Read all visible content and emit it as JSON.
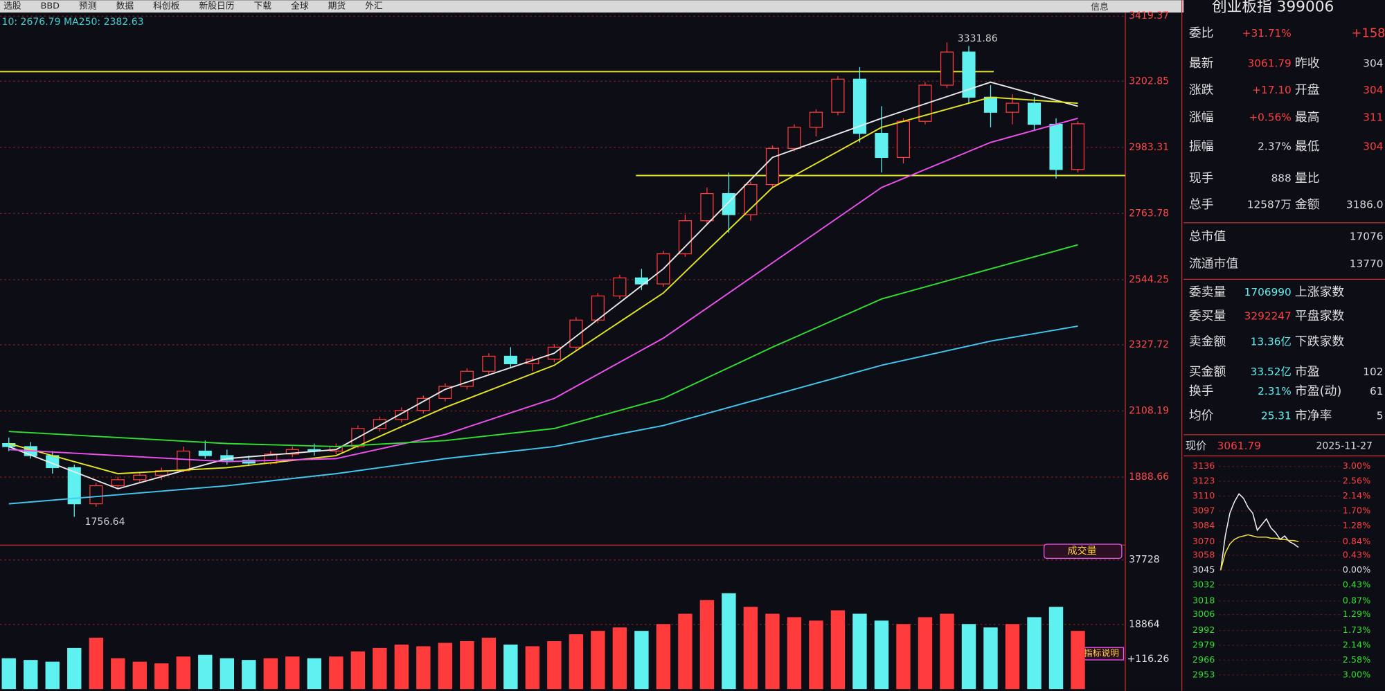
{
  "toolbar": [
    "选股",
    "BBD",
    "预测",
    "数据",
    "科创板",
    "新股日历",
    "下载",
    "全球",
    "期货",
    "外汇"
  ],
  "ma_header": "10: 2676.79 MA250: 2382.63",
  "chart_data": {
    "type": "candlestick",
    "ylim": [
      1683.4,
      3419.37
    ],
    "yticks": [
      3419.37,
      3202.85,
      2983.31,
      2763.78,
      2544.25,
      2327.72,
      2108.19,
      1888.66
    ],
    "grid": true,
    "up_color": "#ff3b3b",
    "down_color": "#5ff0f0",
    "open": [
      2000,
      1990,
      1960,
      1920,
      1800,
      1860,
      1880,
      1895,
      1910,
      1975,
      1960,
      1945,
      1935,
      1965,
      1980,
      1975,
      1990,
      2050,
      2080,
      2110,
      2150,
      2190,
      2240,
      2290,
      2265,
      2280,
      2320,
      2410,
      2490,
      2550,
      2530,
      2630,
      2740,
      2830,
      2760,
      2860,
      2980,
      3050,
      3100,
      3210,
      3030,
      2950,
      3070,
      3190,
      3300,
      3150,
      3100,
      3130,
      3060,
      2910
    ],
    "high": [
      2020,
      2005,
      1975,
      1930,
      1870,
      1890,
      1905,
      1920,
      1990,
      2010,
      1980,
      1960,
      1975,
      1990,
      2000,
      2000,
      2060,
      2090,
      2120,
      2160,
      2200,
      2250,
      2300,
      2320,
      2290,
      2330,
      2420,
      2500,
      2560,
      2580,
      2640,
      2760,
      2850,
      2900,
      2870,
      2990,
      3060,
      3110,
      3220,
      3250,
      3120,
      3080,
      3200,
      3331.86,
      3320,
      3190,
      3160,
      3150,
      3080,
      3070
    ],
    "low": [
      1975,
      1950,
      1900,
      1756.64,
      1790,
      1850,
      1870,
      1880,
      1905,
      1950,
      1930,
      1925,
      1930,
      1955,
      1960,
      1965,
      1985,
      2040,
      2070,
      2100,
      2140,
      2180,
      2230,
      2250,
      2240,
      2270,
      2310,
      2400,
      2480,
      2510,
      2520,
      2620,
      2730,
      2700,
      2740,
      2850,
      2970,
      3020,
      3090,
      3000,
      2900,
      2930,
      3060,
      3180,
      3130,
      3050,
      3060,
      3040,
      2880,
      2900
    ],
    "close": [
      1990,
      1960,
      1920,
      1800,
      1860,
      1880,
      1895,
      1910,
      1975,
      1960,
      1945,
      1935,
      1965,
      1980,
      1975,
      1990,
      2050,
      2080,
      2110,
      2150,
      2190,
      2240,
      2290,
      2265,
      2280,
      2320,
      2410,
      2490,
      2550,
      2530,
      2630,
      2740,
      2830,
      2760,
      2860,
      2980,
      3050,
      3100,
      3210,
      3030,
      2950,
      3070,
      3190,
      3300,
      3150,
      3100,
      3130,
      3060,
      2910,
      3061.79
    ],
    "ma": [
      {
        "color": "#e8e8e8",
        "x": [
          0,
          5,
          10,
          15,
          20,
          25,
          30,
          35,
          40,
          45,
          49
        ],
        "values": [
          1990,
          1850,
          1950,
          1980,
          2180,
          2300,
          2580,
          2950,
          3080,
          3200,
          3120
        ]
      },
      {
        "color": "#e6e61e",
        "x": [
          0,
          5,
          10,
          15,
          20,
          25,
          30,
          35,
          40,
          45,
          49
        ],
        "values": [
          2000,
          1900,
          1920,
          1960,
          2120,
          2260,
          2500,
          2850,
          3050,
          3150,
          3130
        ]
      },
      {
        "color": "#f050f0",
        "x": [
          0,
          5,
          10,
          15,
          20,
          25,
          30,
          35,
          40,
          45,
          49
        ],
        "values": [
          1980,
          1960,
          1940,
          1950,
          2030,
          2150,
          2350,
          2600,
          2850,
          3000,
          3080
        ]
      },
      {
        "color": "#30e030",
        "x": [
          0,
          5,
          10,
          15,
          20,
          25,
          30,
          35,
          40,
          45,
          49
        ],
        "values": [
          2040,
          2020,
          2000,
          1990,
          2010,
          2050,
          2150,
          2320,
          2480,
          2580,
          2660
        ]
      },
      {
        "color": "#40c8f0",
        "x": [
          0,
          5,
          10,
          15,
          20,
          25,
          30,
          35,
          40,
          45,
          49
        ],
        "values": [
          1800,
          1830,
          1860,
          1900,
          1950,
          1990,
          2060,
          2160,
          2260,
          2340,
          2390
        ]
      }
    ],
    "hlines": {
      "color": "#e6e61e",
      "values": [
        3235,
        2890
      ]
    },
    "volume": {
      "ylim": [
        0,
        40000
      ],
      "yticks": [
        37728,
        18864
      ],
      "label": "成交量",
      "note": "指标说明",
      "extra": "+116.26",
      "values": [
        9000,
        8500,
        8000,
        12000,
        15000,
        9000,
        8000,
        7500,
        9500,
        10000,
        9000,
        8500,
        9000,
        9500,
        9000,
        9500,
        11000,
        12000,
        13000,
        12500,
        13500,
        14000,
        15000,
        13000,
        12500,
        14000,
        16000,
        17000,
        18000,
        17000,
        19000,
        22000,
        26000,
        28000,
        24000,
        22000,
        21000,
        20000,
        23000,
        22000,
        20000,
        19000,
        21000,
        22000,
        19000,
        18000,
        19000,
        21000,
        24000,
        17000
      ]
    }
  },
  "panel": {
    "title": "创业板指 399006",
    "info": "信息",
    "rows": [
      {
        "cells": [
          "委比",
          "+31.71%",
          "+158"
        ],
        "colors": [
          "#ddd",
          "#ff4040",
          "#ff4040"
        ]
      },
      {
        "cells": [
          "最新",
          "3061.79",
          "昨收",
          "304"
        ],
        "colors": [
          "#ddd",
          "#ff4040",
          "#ddd",
          "#ddd"
        ]
      },
      {
        "cells": [
          "涨跌",
          "+17.10",
          "开盘",
          "304"
        ],
        "colors": [
          "#ddd",
          "#ff4040",
          "#ddd",
          "#ff4040"
        ]
      },
      {
        "cells": [
          "涨幅",
          "+0.56%",
          "最高",
          "311"
        ],
        "colors": [
          "#ddd",
          "#ff4040",
          "#ddd",
          "#ff4040"
        ]
      },
      {
        "cells": [
          "振幅",
          "2.37%",
          "最低",
          "304"
        ],
        "colors": [
          "#ddd",
          "#ddd",
          "#ddd",
          "#ff4040"
        ]
      },
      {
        "cells": [
          "现手",
          "888",
          "量比"
        ],
        "colors": [
          "#ddd",
          "#ddd",
          "#ddd"
        ]
      },
      {
        "cells": [
          "总手",
          "12587万",
          "金额",
          "3186.0"
        ],
        "colors": [
          "#ddd",
          "#ddd",
          "#ddd",
          "#ddd"
        ]
      },
      {
        "cells": [
          "总市值",
          "17076"
        ],
        "colors": [
          "#ddd",
          "#ddd"
        ]
      },
      {
        "cells": [
          "流通市值",
          "13770"
        ],
        "colors": [
          "#ddd",
          "#ddd"
        ]
      },
      {
        "cells": [
          "委卖量",
          "1706990",
          "上涨家数"
        ],
        "colors": [
          "#ddd",
          "#5ff0f0",
          "#ddd"
        ]
      },
      {
        "cells": [
          "委买量",
          "3292247",
          "平盘家数"
        ],
        "colors": [
          "#ddd",
          "#ff4040",
          "#ddd"
        ]
      },
      {
        "cells": [
          "卖金额",
          "13.36亿",
          "下跌家数"
        ],
        "colors": [
          "#ddd",
          "#5ff0f0",
          "#ddd"
        ]
      },
      {
        "cells": [
          "买金额",
          "33.52亿",
          "市盈",
          "102"
        ],
        "colors": [
          "#ddd",
          "#5ff0f0",
          "#ddd",
          "#ddd"
        ]
      },
      {
        "cells": [
          "换手",
          "2.31%",
          "市盈(动)",
          "61"
        ],
        "colors": [
          "#ddd",
          "#5ff0f0",
          "#ddd",
          "#ddd"
        ]
      },
      {
        "cells": [
          "均价",
          "25.31",
          "市净率",
          "5"
        ],
        "colors": [
          "#ddd",
          "#5ff0f0",
          "#ddd",
          "#ddd"
        ]
      }
    ],
    "price_label": "现价",
    "price": "3061.79",
    "date": "2025-11-27",
    "intraday": {
      "type": "line",
      "ylim": [
        2953,
        3136
      ],
      "yticks": [
        3136,
        3123,
        3110,
        3097,
        3084,
        3070,
        3058,
        3045,
        3032,
        3018,
        3006,
        2992,
        2979,
        2966,
        2953
      ],
      "pct_labels": [
        "3.00%",
        "2.56%",
        "2.14%",
        "1.70%",
        "1.28%",
        "0.84%",
        "0.43%",
        "0.00%",
        "0.43%",
        "0.87%",
        "1.29%",
        "1.73%",
        "2.14%",
        "2.58%",
        "3.00%"
      ],
      "series": [
        {
          "color": "#f0f0f0",
          "values": [
            3045,
            3075,
            3095,
            3105,
            3112,
            3108,
            3100,
            3095,
            3080,
            3085,
            3090,
            3082,
            3078,
            3072,
            3075,
            3070,
            3068,
            3065
          ]
        },
        {
          "color": "#f0e040",
          "values": [
            3045,
            3060,
            3068,
            3072,
            3074,
            3075,
            3076,
            3075,
            3074,
            3074,
            3074,
            3073,
            3073,
            3072,
            3072,
            3071,
            3071,
            3070
          ]
        }
      ]
    }
  }
}
